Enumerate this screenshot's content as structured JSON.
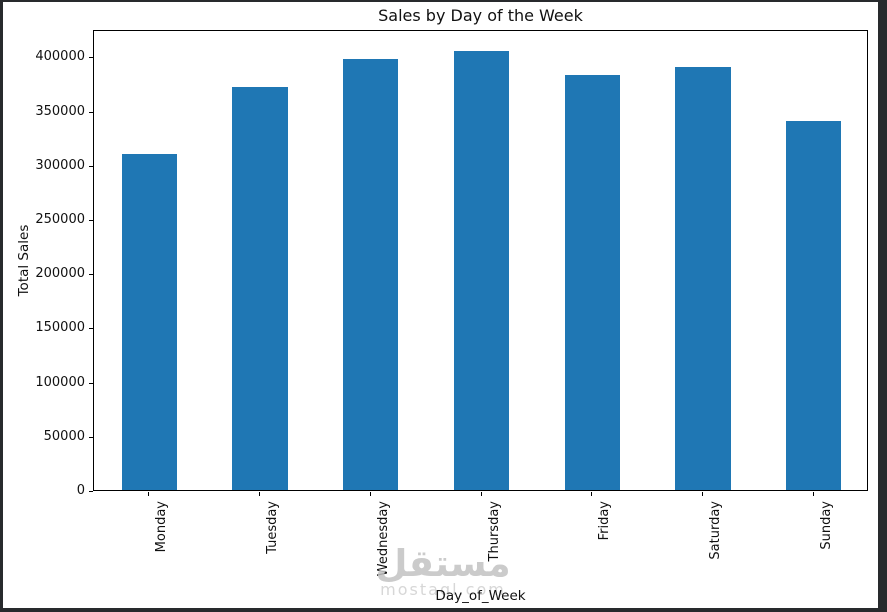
{
  "window": {
    "frame_color": "#282a2d",
    "background_color": "#ffffff"
  },
  "chart_data": {
    "type": "bar",
    "title": "Sales by Day of the Week",
    "xlabel": "Day_of_Week",
    "ylabel": "Total Sales",
    "categories": [
      "Monday",
      "Tuesday",
      "Wednesday",
      "Thursday",
      "Friday",
      "Saturday",
      "Sunday"
    ],
    "values": [
      309500,
      372000,
      397500,
      405000,
      383000,
      390000,
      340500
    ],
    "yticks": [
      0,
      50000,
      100000,
      150000,
      200000,
      250000,
      300000,
      350000,
      400000
    ],
    "ylim": [
      0,
      425250
    ],
    "bar_color": "#1f77b4",
    "bar_width_fraction": 0.5,
    "x_tick_rotation": 90,
    "grid": false,
    "legend": "none"
  },
  "watermark": {
    "arabic_text": "مستقل",
    "latin_text": "mostaql.com",
    "color": "#c3c3c3"
  }
}
